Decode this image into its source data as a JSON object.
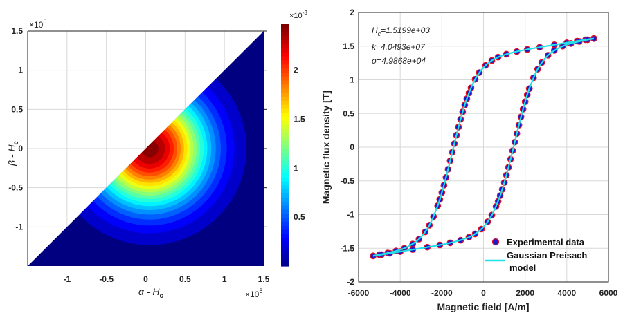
{
  "chart_data": [
    {
      "type": "heatmap",
      "subtype": "filled-contour",
      "xlabel": "α - H",
      "xlabel_sub": "c",
      "ylabel": "β - H",
      "ylabel_sub": "c",
      "x_multiplier": "×10",
      "x_multiplier_exp": "5",
      "y_multiplier": "×10",
      "y_multiplier_exp": "5",
      "xlim": [
        -1.5,
        1.5
      ],
      "ylim": [
        -1.5,
        1.5
      ],
      "x_ticks": [
        "-1",
        "-0.5",
        "0",
        "0.5",
        "1",
        "1.5"
      ],
      "x_tick_values": [
        -1,
        -0.5,
        0,
        0.5,
        1,
        1.5
      ],
      "y_ticks": [
        "1.5",
        "1",
        "0.5",
        "0",
        "-0.5",
        "-1"
      ],
      "y_tick_values": [
        1.5,
        1,
        0.5,
        0,
        -0.5,
        -1
      ],
      "grid": true,
      "domain": "beta <= alpha",
      "distribution": {
        "center_alpha": 0.05,
        "center_beta": 0,
        "sigma": 0.5,
        "peak": 2.45
      },
      "levels": 20,
      "colormap": "jet",
      "colorbar": {
        "multiplier": "×10",
        "multiplier_exp": "-3",
        "range": [
          0,
          2.47
        ],
        "ticks": [
          "0.5",
          "1",
          "1.5",
          "2"
        ],
        "tick_values": [
          0.5,
          1,
          1.5,
          2
        ]
      }
    },
    {
      "type": "scatter",
      "xlabel": "Magnetic field [A/m]",
      "ylabel": "Magnetic flux density [T]",
      "xlim": [
        -6000,
        6000
      ],
      "ylim": [
        -2,
        2
      ],
      "x_ticks": [
        "-6000",
        "-4000",
        "-2000",
        "0",
        "2000",
        "4000",
        "6000"
      ],
      "x_tick_values": [
        -6000,
        -4000,
        -2000,
        0,
        2000,
        4000,
        6000
      ],
      "y_ticks": [
        "2",
        "1.5",
        "1",
        "0.5",
        "0",
        "-0.5",
        "-1",
        "-1.5",
        "-2"
      ],
      "y_tick_values": [
        2,
        1.5,
        1,
        0.5,
        0,
        -0.5,
        -1,
        -1.5,
        -2
      ],
      "grid": true,
      "legend_position": "bottom-right",
      "annotations": [
        {
          "main": "H",
          "sub": "c",
          "rest": "=1.5199e+03"
        },
        {
          "main": "k=4.0493e+07",
          "sub": "",
          "rest": ""
        },
        {
          "main": "σ=4.9868e+04",
          "sub": "",
          "rest": ""
        }
      ],
      "colors": {
        "marker_fill": "#1a1ad0",
        "marker_edge": "#e0102a",
        "model_line": "#22e0e8"
      },
      "series": [
        {
          "name": "Experimental data",
          "descending": [
            [
              5300,
              1.615
            ],
            [
              4900,
              1.595
            ],
            [
              4500,
              1.575
            ],
            [
              4000,
              1.55
            ],
            [
              3400,
              1.52
            ],
            [
              2700,
              1.484
            ],
            [
              2100,
              1.451
            ],
            [
              1600,
              1.42
            ],
            [
              1100,
              1.381
            ],
            [
              700,
              1.336
            ],
            [
              400,
              1.287
            ],
            [
              100,
              1.215
            ],
            [
              -200,
              1.107
            ],
            [
              -400,
              1.008
            ],
            [
              -600,
              0.88
            ],
            [
              -700,
              0.804
            ],
            [
              -800,
              0.719
            ],
            [
              -900,
              0.626
            ],
            [
              -1000,
              0.525
            ],
            [
              -1100,
              0.415
            ],
            [
              -1200,
              0.299
            ],
            [
              -1300,
              0.178
            ],
            [
              -1400,
              0.052
            ],
            [
              -1500,
              -0.075
            ],
            [
              -1600,
              -0.202
            ],
            [
              -1700,
              -0.328
            ],
            [
              -1800,
              -0.449
            ],
            [
              -1900,
              -0.565
            ],
            [
              -2000,
              -0.675
            ],
            [
              -2100,
              -0.776
            ],
            [
              -2200,
              -0.869
            ],
            [
              -2400,
              -1.03
            ],
            [
              -2600,
              -1.158
            ],
            [
              -2800,
              -1.257
            ],
            [
              -3100,
              -1.365
            ],
            [
              -3400,
              -1.437
            ],
            [
              -3800,
              -1.5
            ],
            [
              -4200,
              -1.54
            ],
            [
              -4600,
              -1.57
            ],
            [
              -5000,
              -1.595
            ],
            [
              -5300,
              -1.612
            ]
          ],
          "ascending": [
            [
              -5300,
              -1.615
            ],
            [
              -4900,
              -1.595
            ],
            [
              -4500,
              -1.575
            ],
            [
              -4000,
              -1.55
            ],
            [
              -3400,
              -1.52
            ],
            [
              -2700,
              -1.484
            ],
            [
              -2100,
              -1.451
            ],
            [
              -1600,
              -1.42
            ],
            [
              -1100,
              -1.381
            ],
            [
              -700,
              -1.336
            ],
            [
              -400,
              -1.287
            ],
            [
              -100,
              -1.215
            ],
            [
              200,
              -1.107
            ],
            [
              400,
              -1.008
            ],
            [
              600,
              -0.88
            ],
            [
              700,
              -0.804
            ],
            [
              800,
              -0.719
            ],
            [
              900,
              -0.626
            ],
            [
              1000,
              -0.525
            ],
            [
              1100,
              -0.415
            ],
            [
              1200,
              -0.299
            ],
            [
              1300,
              -0.178
            ],
            [
              1400,
              -0.052
            ],
            [
              1500,
              0.075
            ],
            [
              1600,
              0.202
            ],
            [
              1700,
              0.328
            ],
            [
              1800,
              0.449
            ],
            [
              1900,
              0.565
            ],
            [
              2000,
              0.675
            ],
            [
              2100,
              0.776
            ],
            [
              2200,
              0.869
            ],
            [
              2400,
              1.03
            ],
            [
              2600,
              1.158
            ],
            [
              2800,
              1.257
            ],
            [
              3100,
              1.365
            ],
            [
              3400,
              1.437
            ],
            [
              3800,
              1.5
            ],
            [
              4200,
              1.54
            ],
            [
              4600,
              1.57
            ],
            [
              5000,
              1.595
            ],
            [
              5300,
              1.612
            ]
          ]
        },
        {
          "name": "Gaussian Preisach",
          "name_line2": "model",
          "descending": [
            [
              5300,
              1.615
            ],
            [
              4000,
              1.55
            ],
            [
              2700,
              1.484
            ],
            [
              1600,
              1.42
            ],
            [
              700,
              1.336
            ],
            [
              100,
              1.215
            ],
            [
              -400,
              1.008
            ],
            [
              -800,
              0.719
            ],
            [
              -1100,
              0.415
            ],
            [
              -1400,
              0.052
            ],
            [
              -1700,
              -0.328
            ],
            [
              -2000,
              -0.675
            ],
            [
              -2200,
              -0.869
            ],
            [
              -2600,
              -1.158
            ],
            [
              -3100,
              -1.365
            ],
            [
              -3800,
              -1.5
            ],
            [
              -4600,
              -1.57
            ],
            [
              -5300,
              -1.612
            ]
          ],
          "ascending": [
            [
              -5300,
              -1.615
            ],
            [
              -4000,
              -1.55
            ],
            [
              -2700,
              -1.484
            ],
            [
              -1600,
              -1.42
            ],
            [
              -700,
              -1.336
            ],
            [
              -100,
              -1.215
            ],
            [
              400,
              -1.008
            ],
            [
              800,
              -0.719
            ],
            [
              1100,
              -0.415
            ],
            [
              1400,
              -0.052
            ],
            [
              1700,
              0.328
            ],
            [
              2000,
              0.675
            ],
            [
              2200,
              0.869
            ],
            [
              2600,
              1.158
            ],
            [
              3100,
              1.365
            ],
            [
              3800,
              1.5
            ],
            [
              4600,
              1.57
            ],
            [
              5300,
              1.612
            ]
          ]
        }
      ]
    }
  ]
}
